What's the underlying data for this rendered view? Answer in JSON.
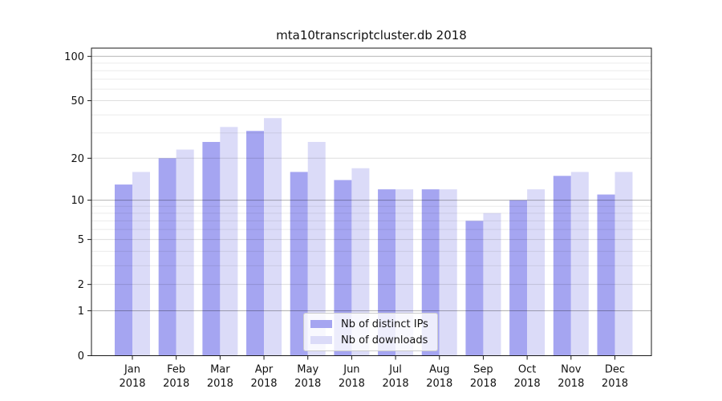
{
  "chart_data": {
    "type": "bar",
    "title": "mta10transcriptcluster.db 2018",
    "categories": [
      "Jan",
      "Feb",
      "Mar",
      "Apr",
      "May",
      "Jun",
      "Jul",
      "Aug",
      "Sep",
      "Oct",
      "Nov",
      "Dec"
    ],
    "year_label": "2018",
    "series": [
      {
        "name": "Nb of distinct IPs",
        "color": "#a5a5f1",
        "values": [
          13,
          20,
          26,
          31,
          16,
          14,
          12,
          12,
          7,
          10,
          15,
          11
        ]
      },
      {
        "name": "Nb of downloads",
        "color": "#dbdbf8",
        "values": [
          16,
          23,
          33,
          38,
          26,
          17,
          12,
          12,
          8,
          12,
          16,
          16
        ]
      }
    ],
    "xlabel": "",
    "ylabel": "",
    "yscale": "log(1+y)",
    "ylim": [
      0,
      113
    ],
    "yticks": [
      0,
      1,
      2,
      5,
      10,
      20,
      50,
      100
    ],
    "grid": true,
    "legend_position": "lower center",
    "colors": {
      "axis": "#1a1a1a",
      "text": "#111111",
      "grid_major": "#b3b3b3",
      "grid_mid": "#dddddd",
      "grid_minor": "#ededed"
    }
  }
}
